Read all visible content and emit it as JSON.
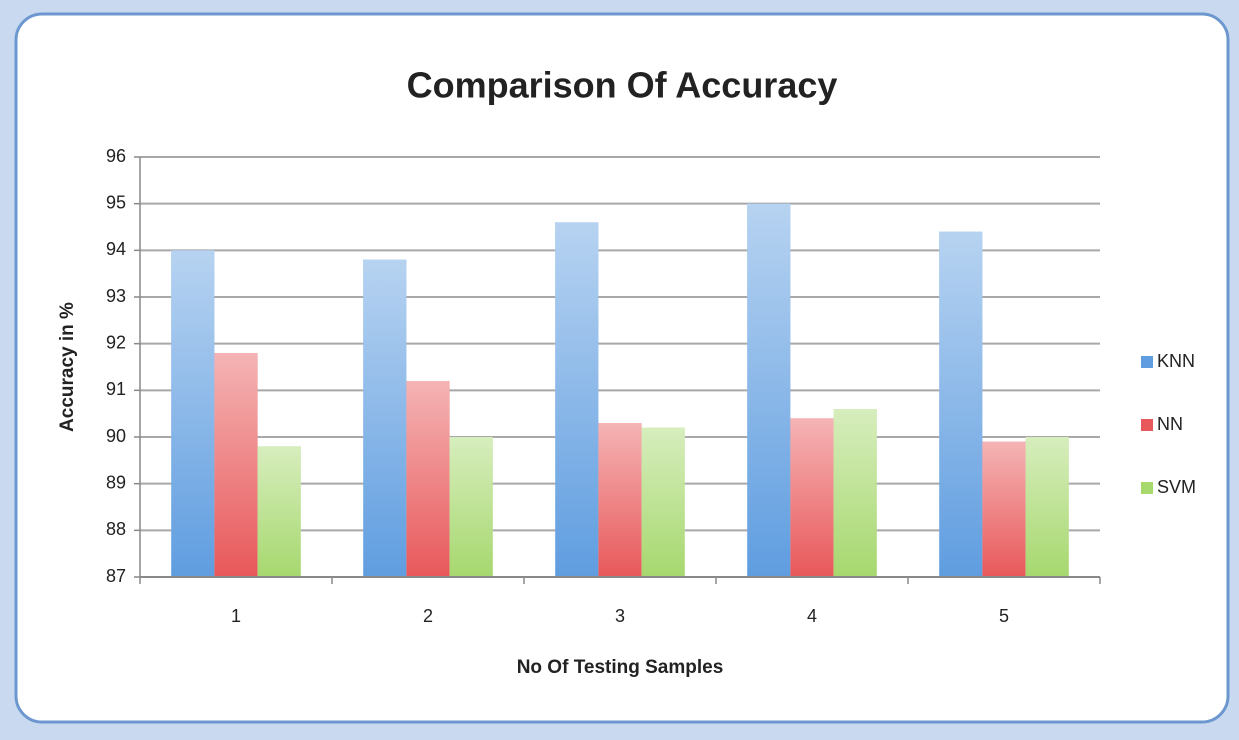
{
  "chart_data": {
    "type": "bar",
    "title": "Comparison Of Accuracy",
    "x_label": "No Of Testing Samples",
    "y_label": "Accuracy in %",
    "categories": [
      "1",
      "2",
      "3",
      "4",
      "5"
    ],
    "series": [
      {
        "name": "KNN",
        "color": "#5f9de0",
        "values": [
          94.0,
          93.8,
          94.6,
          95.0,
          94.4
        ]
      },
      {
        "name": "NN",
        "color": "#e8585a",
        "values": [
          91.8,
          91.2,
          90.3,
          90.4,
          89.9
        ]
      },
      {
        "name": "SVM",
        "color": "#a6d86e",
        "values": [
          89.8,
          90.0,
          90.2,
          90.6,
          90.0
        ]
      }
    ],
    "ylim": [
      87,
      96
    ],
    "yticks": [
      87,
      88,
      89,
      90,
      91,
      92,
      93,
      94,
      95,
      96
    ],
    "grid": true,
    "legend": "right"
  }
}
